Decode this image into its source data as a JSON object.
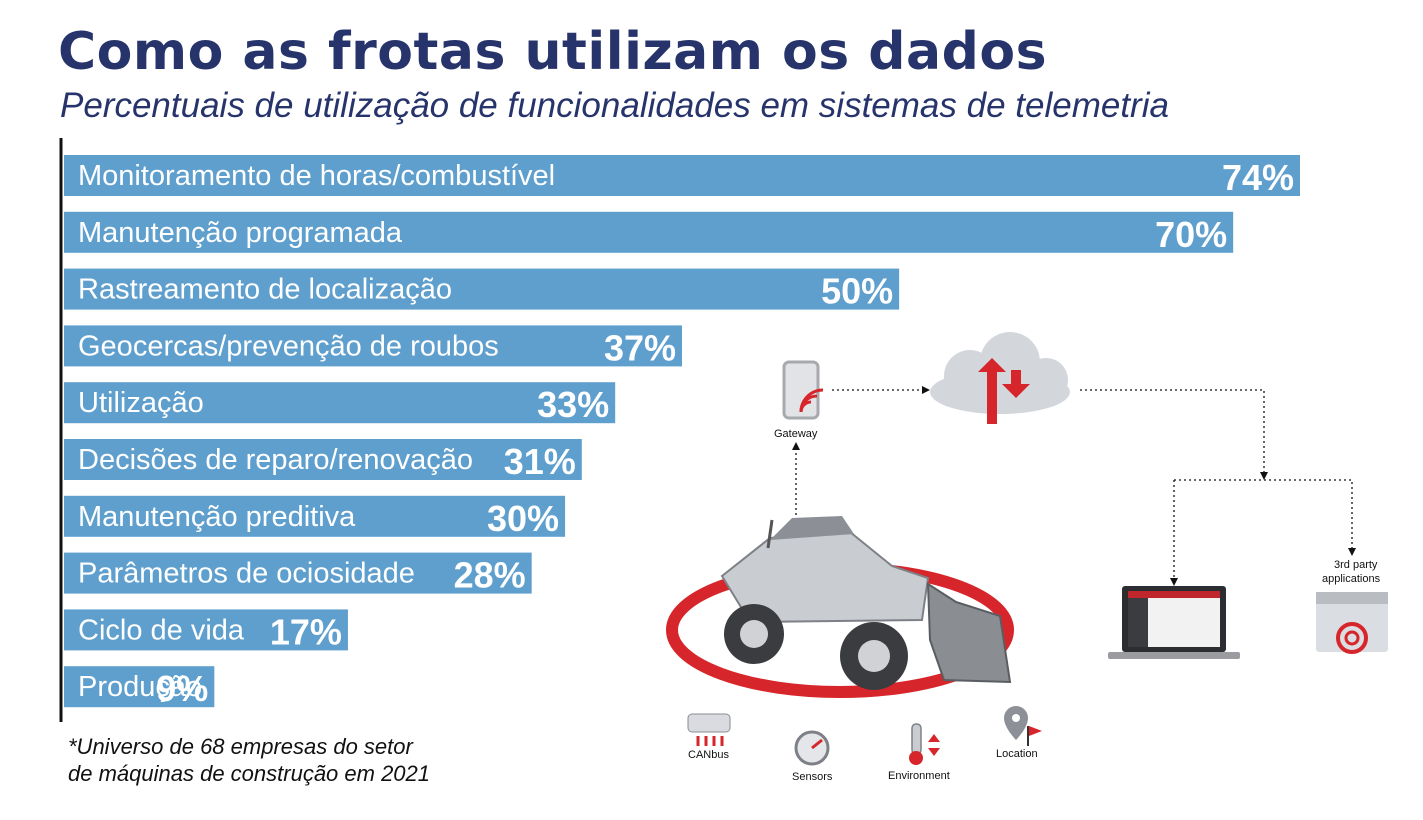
{
  "header": {
    "title": "Como as frotas utilizam os dados",
    "subtitle": "Percentuais de utilização de funcionalidades em sistemas de telemetria"
  },
  "chart_data": {
    "type": "bar",
    "orientation": "horizontal",
    "categories": [
      "Monitoramento de horas/combustível",
      "Manutenção programada",
      "Rastreamento de localização",
      "Geocercas/prevenção de roubos",
      "Utilização",
      "Decisões de reparo/renovação",
      "Manutenção preditiva",
      "Parâmetros de ociosidade",
      "Ciclo de vida",
      "Produção"
    ],
    "values": [
      74,
      70,
      50,
      37,
      33,
      31,
      30,
      28,
      17,
      9
    ],
    "value_labels": [
      "74%",
      "70%",
      "50%",
      "37%",
      "33%",
      "31%",
      "30%",
      "28%",
      "17%",
      "9%"
    ],
    "bar_color": "#5f9fce",
    "title": "Como as frotas utilizam os dados",
    "subtitle": "Percentuais de utilização de funcionalidades em sistemas de telemetria"
  },
  "footnote": {
    "line1": "*Universo de 68 empresas do setor",
    "line2": "de máquinas de construção em 2021"
  },
  "illustration": {
    "gateway_label": "Gateway",
    "third_party_label_1": "3rd party",
    "third_party_label_2": "applications",
    "canbus_label": "CANbus",
    "sensors_label": "Sensors",
    "environment_label": "Environment",
    "location_label": "Location"
  },
  "colors": {
    "title": "#27346b",
    "bar": "#5f9fce",
    "accent_red": "#d7262b",
    "cloud": "#d3d7dc"
  }
}
